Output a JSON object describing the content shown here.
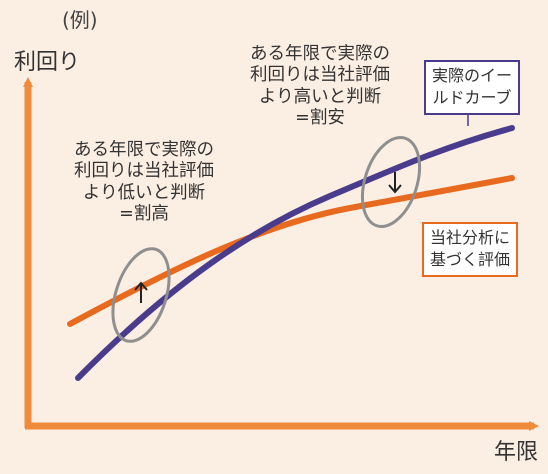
{
  "example_label": "(例)",
  "axes": {
    "y_label": "利回り",
    "x_label": "年限"
  },
  "annotations": {
    "long_term_note": "ある年限で実際の\n利回りは当社評価\nより高いと判断\n=割安",
    "short_term_note": "ある年限で実際の\n利回りは当社評価\nより低いと判断\n=割高"
  },
  "legend": {
    "actual_yield_curve": "実際のイー\nルドカーブ",
    "company_evaluation": "当社分析に\n基づく評価"
  },
  "colors": {
    "background": "#fbeee3",
    "axis": "#f08a3c",
    "actual_curve": "#4a3c8c",
    "evaluation_curve": "#e86a1e",
    "ellipse": "#8f8f8f"
  },
  "arrows": {
    "short_term": "up",
    "long_term": "down"
  }
}
